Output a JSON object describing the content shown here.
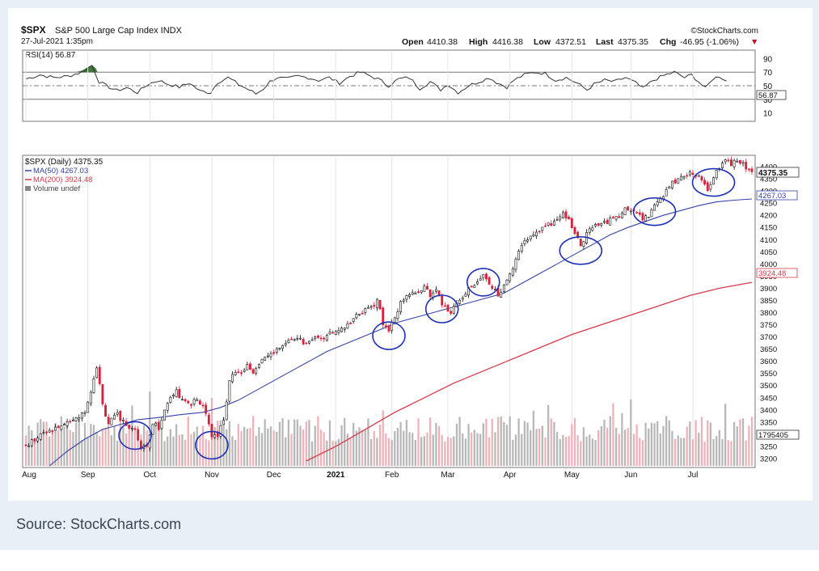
{
  "header": {
    "symbol": "$SPX",
    "name": "S&P 500 Large Cap Index INDX",
    "date": "27-Jul-2021 1:35pm",
    "brand": "©StockCharts.com",
    "open_label": "Open",
    "open": "4410.38",
    "high_label": "High",
    "high": "4416.38",
    "low_label": "Low",
    "low": "4372.51",
    "last_label": "Last",
    "last": "4375.35",
    "chg_label": "Chg",
    "chg": "-46.95 (-1.06%)",
    "chg_arrow": "▼"
  },
  "source": "Source: StockCharts.com",
  "colors": {
    "up": "#111111",
    "down": "#d9203a",
    "ma50": "#3543a8",
    "ma200": "#d8394a",
    "vol_up": "#b7b7b7",
    "vol_down": "#efb1b8",
    "circle": "#1c2fb8",
    "rsi_fill": "#3f7a3a"
  },
  "chart_data": {
    "type": "candlestick",
    "title": "$SPX S&P 500 Large Cap Index INDX",
    "rsi_panel": {
      "label": "RSI(14) 56.87",
      "ticks": [
        90,
        70,
        50,
        30,
        10
      ],
      "ylim": [
        0,
        100
      ],
      "current": "56.87",
      "points": [
        [
          0,
          60
        ],
        [
          4,
          66
        ],
        [
          8,
          62
        ],
        [
          12,
          64
        ],
        [
          16,
          70
        ],
        [
          19,
          80
        ],
        [
          21,
          56
        ],
        [
          23,
          50
        ],
        [
          26,
          43
        ],
        [
          29,
          47
        ],
        [
          32,
          40
        ],
        [
          35,
          52
        ],
        [
          38,
          58
        ],
        [
          41,
          52
        ],
        [
          44,
          48
        ],
        [
          47,
          54
        ],
        [
          50,
          42
        ],
        [
          53,
          40
        ],
        [
          55,
          55
        ],
        [
          58,
          62
        ],
        [
          61,
          52
        ],
        [
          64,
          44
        ],
        [
          66,
          38
        ],
        [
          68,
          45
        ],
        [
          70,
          56
        ],
        [
          72,
          62
        ],
        [
          75,
          60
        ],
        [
          78,
          64
        ],
        [
          81,
          62
        ],
        [
          84,
          58
        ],
        [
          87,
          62
        ],
        [
          90,
          54
        ],
        [
          93,
          64
        ],
        [
          96,
          70
        ],
        [
          98,
          66
        ],
        [
          101,
          60
        ],
        [
          104,
          50
        ],
        [
          107,
          60
        ],
        [
          110,
          62
        ],
        [
          113,
          46
        ],
        [
          116,
          56
        ],
        [
          119,
          44
        ],
        [
          121,
          52
        ],
        [
          124,
          40
        ],
        [
          127,
          50
        ],
        [
          130,
          56
        ],
        [
          133,
          62
        ],
        [
          135,
          55
        ],
        [
          138,
          48
        ],
        [
          140,
          58
        ],
        [
          143,
          66
        ],
        [
          146,
          70
        ],
        [
          149,
          68
        ],
        [
          152,
          58
        ],
        [
          155,
          62
        ],
        [
          158,
          54
        ],
        [
          161,
          44
        ],
        [
          163,
          52
        ],
        [
          166,
          58
        ],
        [
          169,
          56
        ],
        [
          172,
          62
        ],
        [
          175,
          54
        ],
        [
          177,
          46
        ],
        [
          180,
          58
        ],
        [
          183,
          65
        ],
        [
          186,
          70
        ],
        [
          189,
          62
        ],
        [
          191,
          66
        ],
        [
          193,
          56
        ],
        [
          195,
          46
        ],
        [
          197,
          60
        ],
        [
          199,
          64
        ],
        [
          201,
          56.87
        ]
      ]
    },
    "price_panel": {
      "legend": [
        "$SPX (Daily) 4375.35",
        "MA(50) 4267.03",
        "MA(200) 3924.48",
        "Volume undef"
      ],
      "ylim": [
        3170,
        4440
      ],
      "y_ticks": [
        3200,
        3250,
        3300,
        3350,
        3400,
        3450,
        3500,
        3550,
        3600,
        3650,
        3700,
        3750,
        3800,
        3850,
        3900,
        3950,
        4000,
        4050,
        4100,
        4150,
        4200,
        4250,
        4300,
        4350,
        4400
      ],
      "x_labels": [
        {
          "label": "Aug",
          "i": 0
        },
        {
          "label": "Sep",
          "i": 21
        },
        {
          "label": "Oct",
          "i": 42
        },
        {
          "label": "Nov",
          "i": 63
        },
        {
          "label": "Dec",
          "i": 84
        },
        {
          "label": "2021",
          "i": 105
        },
        {
          "label": "Feb",
          "i": 124
        },
        {
          "label": "Mar",
          "i": 143
        },
        {
          "label": "Apr",
          "i": 164
        },
        {
          "label": "May",
          "i": 185
        },
        {
          "label": "Jun",
          "i": 205
        },
        {
          "label": "Jul",
          "i": 226
        }
      ],
      "n_bars": 247,
      "closes": [
        [
          0,
          3250
        ],
        [
          5,
          3295
        ],
        [
          10,
          3325
        ],
        [
          15,
          3345
        ],
        [
          20,
          3400
        ],
        [
          22,
          3480
        ],
        [
          24,
          3580
        ],
        [
          26,
          3420
        ],
        [
          28,
          3345
        ],
        [
          31,
          3380
        ],
        [
          34,
          3340
        ],
        [
          37,
          3320
        ],
        [
          39,
          3250
        ],
        [
          41,
          3240
        ],
        [
          43,
          3350
        ],
        [
          45,
          3330
        ],
        [
          47,
          3400
        ],
        [
          49,
          3460
        ],
        [
          51,
          3480
        ],
        [
          53,
          3440
        ],
        [
          55,
          3420
        ],
        [
          58,
          3440
        ],
        [
          61,
          3390
        ],
        [
          63,
          3280
        ],
        [
          65,
          3300
        ],
        [
          67,
          3360
        ],
        [
          69,
          3520
        ],
        [
          71,
          3560
        ],
        [
          73,
          3560
        ],
        [
          75,
          3580
        ],
        [
          77,
          3560
        ],
        [
          80,
          3600
        ],
        [
          83,
          3630
        ],
        [
          86,
          3660
        ],
        [
          89,
          3680
        ],
        [
          92,
          3700
        ],
        [
          95,
          3670
        ],
        [
          98,
          3690
        ],
        [
          101,
          3700
        ],
        [
          104,
          3720
        ],
        [
          107,
          3740
        ],
        [
          110,
          3760
        ],
        [
          113,
          3800
        ],
        [
          116,
          3810
        ],
        [
          119,
          3850
        ],
        [
          121,
          3760
        ],
        [
          123,
          3730
        ],
        [
          125,
          3770
        ],
        [
          127,
          3840
        ],
        [
          129,
          3870
        ],
        [
          132,
          3880
        ],
        [
          135,
          3910
        ],
        [
          137,
          3870
        ],
        [
          139,
          3900
        ],
        [
          141,
          3840
        ],
        [
          144,
          3790
        ],
        [
          146,
          3840
        ],
        [
          149,
          3880
        ],
        [
          152,
          3920
        ],
        [
          155,
          3950
        ],
        [
          158,
          3900
        ],
        [
          160,
          3870
        ],
        [
          162,
          3920
        ],
        [
          164,
          3960
        ],
        [
          166,
          4010
        ],
        [
          168,
          4080
        ],
        [
          171,
          4120
        ],
        [
          174,
          4140
        ],
        [
          177,
          4160
        ],
        [
          180,
          4180
        ],
        [
          182,
          4210
        ],
        [
          184,
          4180
        ],
        [
          186,
          4120
        ],
        [
          188,
          4080
        ],
        [
          190,
          4120
        ],
        [
          192,
          4150
        ],
        [
          195,
          4160
        ],
        [
          198,
          4180
        ],
        [
          201,
          4200
        ],
        [
          204,
          4230
        ],
        [
          207,
          4220
        ],
        [
          209,
          4180
        ],
        [
          211,
          4200
        ],
        [
          213,
          4240
        ],
        [
          216,
          4280
        ],
        [
          219,
          4330
        ],
        [
          222,
          4360
        ],
        [
          225,
          4370
        ],
        [
          228,
          4370
        ],
        [
          231,
          4300
        ],
        [
          233,
          4360
        ],
        [
          235,
          4400
        ],
        [
          237,
          4420
        ],
        [
          239,
          4412
        ],
        [
          241,
          4422
        ],
        [
          243,
          4410
        ],
        [
          246,
          4375
        ]
      ],
      "ma50": [
        [
          8,
          3170
        ],
        [
          14,
          3230
        ],
        [
          20,
          3280
        ],
        [
          26,
          3320
        ],
        [
          32,
          3340
        ],
        [
          38,
          3360
        ],
        [
          46,
          3370
        ],
        [
          52,
          3380
        ],
        [
          60,
          3390
        ],
        [
          66,
          3410
        ],
        [
          72,
          3440
        ],
        [
          78,
          3480
        ],
        [
          84,
          3520
        ],
        [
          90,
          3560
        ],
        [
          96,
          3600
        ],
        [
          102,
          3640
        ],
        [
          108,
          3670
        ],
        [
          114,
          3700
        ],
        [
          120,
          3730
        ],
        [
          126,
          3760
        ],
        [
          132,
          3780
        ],
        [
          138,
          3800
        ],
        [
          144,
          3820
        ],
        [
          150,
          3840
        ],
        [
          156,
          3860
        ],
        [
          162,
          3880
        ],
        [
          168,
          3920
        ],
        [
          174,
          3960
        ],
        [
          180,
          4000
        ],
        [
          186,
          4040
        ],
        [
          192,
          4080
        ],
        [
          198,
          4120
        ],
        [
          204,
          4150
        ],
        [
          210,
          4175
        ],
        [
          216,
          4200
        ],
        [
          222,
          4220
        ],
        [
          228,
          4240
        ],
        [
          234,
          4255
        ],
        [
          240,
          4262
        ],
        [
          246,
          4267.03
        ]
      ],
      "ma200": [
        [
          95,
          3190
        ],
        [
          105,
          3250
        ],
        [
          115,
          3320
        ],
        [
          125,
          3390
        ],
        [
          135,
          3450
        ],
        [
          145,
          3510
        ],
        [
          155,
          3560
        ],
        [
          165,
          3610
        ],
        [
          175,
          3660
        ],
        [
          185,
          3710
        ],
        [
          195,
          3750
        ],
        [
          205,
          3790
        ],
        [
          215,
          3830
        ],
        [
          225,
          3870
        ],
        [
          235,
          3900
        ],
        [
          246,
          3924.48
        ]
      ],
      "volume_label": "1795405",
      "price_tags": {
        "last": "4375.35",
        "ma50": "4267.03",
        "ma200": "3924.48"
      },
      "circled_dips": [
        37,
        63,
        123,
        141,
        155,
        188,
        213,
        233
      ]
    }
  }
}
